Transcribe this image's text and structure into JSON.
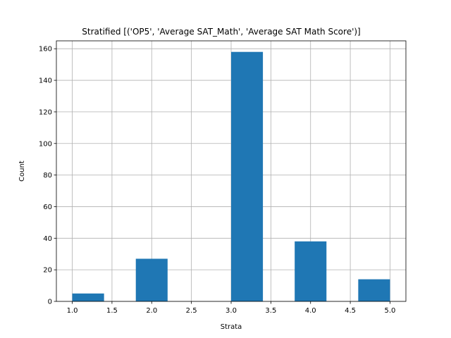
{
  "chart_data": {
    "type": "bar",
    "title": "Stratified [('OP5', 'Average SAT_Math', 'Average SAT Math Score')]",
    "xlabel": "Strata",
    "ylabel": "Count",
    "xlim": [
      0.8,
      5.2
    ],
    "ylim": [
      0,
      165
    ],
    "grid": true,
    "bar_color": "#1f77b4",
    "bins": [
      {
        "x0": 1.0,
        "x1": 1.4,
        "value": 5
      },
      {
        "x0": 1.4,
        "x1": 1.8,
        "value": 0
      },
      {
        "x0": 1.8,
        "x1": 2.2,
        "value": 27
      },
      {
        "x0": 2.2,
        "x1": 2.6,
        "value": 0
      },
      {
        "x0": 2.6,
        "x1": 3.0,
        "value": 0
      },
      {
        "x0": 3.0,
        "x1": 3.4,
        "value": 158
      },
      {
        "x0": 3.4,
        "x1": 3.8,
        "value": 0
      },
      {
        "x0": 3.8,
        "x1": 4.2,
        "value": 38
      },
      {
        "x0": 4.2,
        "x1": 4.6,
        "value": 0
      },
      {
        "x0": 4.6,
        "x1": 5.0,
        "value": 14
      }
    ],
    "xticks": [
      {
        "value": 1.0,
        "label": "1.0"
      },
      {
        "value": 1.5,
        "label": "1.5"
      },
      {
        "value": 2.0,
        "label": "2.0"
      },
      {
        "value": 2.5,
        "label": "2.5"
      },
      {
        "value": 3.0,
        "label": "3.0"
      },
      {
        "value": 3.5,
        "label": "3.5"
      },
      {
        "value": 4.0,
        "label": "4.0"
      },
      {
        "value": 4.5,
        "label": "4.5"
      },
      {
        "value": 5.0,
        "label": "5.0"
      }
    ],
    "yticks": [
      {
        "value": 0,
        "label": "0"
      },
      {
        "value": 20,
        "label": "20"
      },
      {
        "value": 40,
        "label": "40"
      },
      {
        "value": 60,
        "label": "60"
      },
      {
        "value": 80,
        "label": "80"
      },
      {
        "value": 100,
        "label": "100"
      },
      {
        "value": 120,
        "label": "120"
      },
      {
        "value": 140,
        "label": "140"
      },
      {
        "value": 160,
        "label": "160"
      }
    ]
  }
}
